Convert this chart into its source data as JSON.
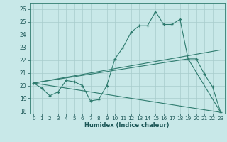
{
  "xlabel": "Humidex (Indice chaleur)",
  "xlim": [
    -0.5,
    23.5
  ],
  "ylim": [
    17.8,
    26.5
  ],
  "yticks": [
    18,
    19,
    20,
    21,
    22,
    23,
    24,
    25,
    26
  ],
  "xticks": [
    0,
    1,
    2,
    3,
    4,
    5,
    6,
    7,
    8,
    9,
    10,
    11,
    12,
    13,
    14,
    15,
    16,
    17,
    18,
    19,
    20,
    21,
    22,
    23
  ],
  "bg_color": "#c8e8e8",
  "line_color": "#2e7b6e",
  "grid_color": "#a8cccc",
  "series": [
    {
      "x": [
        0,
        1,
        2,
        3,
        4,
        5,
        6,
        7,
        8,
        9,
        10,
        11,
        12,
        13,
        14,
        15,
        16,
        17,
        18,
        19,
        20,
        21,
        22,
        23
      ],
      "y": [
        20.2,
        19.8,
        19.2,
        19.5,
        20.4,
        20.3,
        20.0,
        18.8,
        18.9,
        20.0,
        22.1,
        23.0,
        24.2,
        24.7,
        24.7,
        25.8,
        24.8,
        24.8,
        25.2,
        22.1,
        22.1,
        20.9,
        19.9,
        17.9
      ],
      "marker": true
    },
    {
      "x": [
        0,
        23
      ],
      "y": [
        20.2,
        22.8
      ],
      "marker": false
    },
    {
      "x": [
        0,
        19,
        23
      ],
      "y": [
        20.2,
        22.1,
        17.9
      ],
      "marker": false
    },
    {
      "x": [
        0,
        23
      ],
      "y": [
        20.2,
        17.9
      ],
      "marker": false
    }
  ]
}
